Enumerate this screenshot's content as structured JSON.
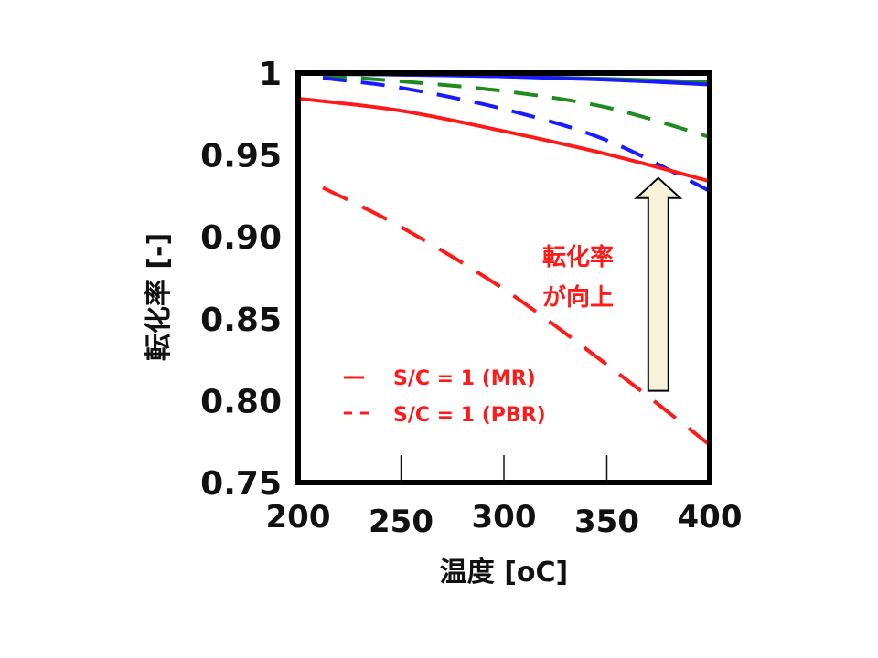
{
  "chart_data": {
    "type": "line",
    "xlabel": "温度 [oC]",
    "ylabel": "転化率 [-]",
    "xlim": [
      200,
      400
    ],
    "ylim": [
      0.75,
      1.0
    ],
    "x_ticks": [
      "200",
      "250",
      "300",
      "350",
      "400"
    ],
    "y_ticks": [
      "0.75",
      "0.80",
      "0.85",
      "0.90",
      "0.95",
      "1"
    ],
    "grid": false,
    "legend": "bottom-left",
    "series": [
      {
        "name": "",
        "style": "solid",
        "color": "#1f8a1f",
        "x": [
          212,
          250,
          300,
          350,
          400
        ],
        "y": [
          0.9995,
          0.999,
          0.998,
          0.9965,
          0.9945
        ]
      },
      {
        "name": "",
        "style": "solid",
        "color": "#1a1aff",
        "x": [
          212,
          250,
          300,
          350,
          400
        ],
        "y": [
          0.9995,
          0.999,
          0.998,
          0.996,
          0.993
        ]
      },
      {
        "name": "",
        "style": "dashed",
        "color": "#1f8a1f",
        "x": [
          212,
          250,
          300,
          350,
          400
        ],
        "y": [
          0.9985,
          0.995,
          0.989,
          0.979,
          0.961
        ]
      },
      {
        "name": "",
        "style": "dashed",
        "color": "#1a1aff",
        "x": [
          212,
          250,
          300,
          350,
          400
        ],
        "y": [
          0.997,
          0.991,
          0.978,
          0.959,
          0.928
        ]
      },
      {
        "name": "S/C = 1 (MR)",
        "style": "solid",
        "color": "#ff1a1a",
        "x": [
          200,
          250,
          300,
          350,
          400
        ],
        "y": [
          0.9845,
          0.977,
          0.9645,
          0.9505,
          0.934
        ]
      },
      {
        "name": "S/C = 1 (PBR)",
        "style": "dashed",
        "color": "#ff1a1a",
        "x": [
          212,
          250,
          300,
          350,
          400
        ],
        "y": [
          0.93,
          0.906,
          0.868,
          0.822,
          0.773
        ]
      }
    ],
    "annotations": [
      {
        "text_lines": [
          "転化率",
          "が向上"
        ],
        "arrow": "up",
        "arrow_x": 375,
        "arrow_from_y": 0.806,
        "arrow_to_y": 0.936
      }
    ],
    "colors": {
      "frame": "#000000",
      "arrow_fill": "#f8f2d9",
      "arrow_stroke": "#000000"
    }
  }
}
